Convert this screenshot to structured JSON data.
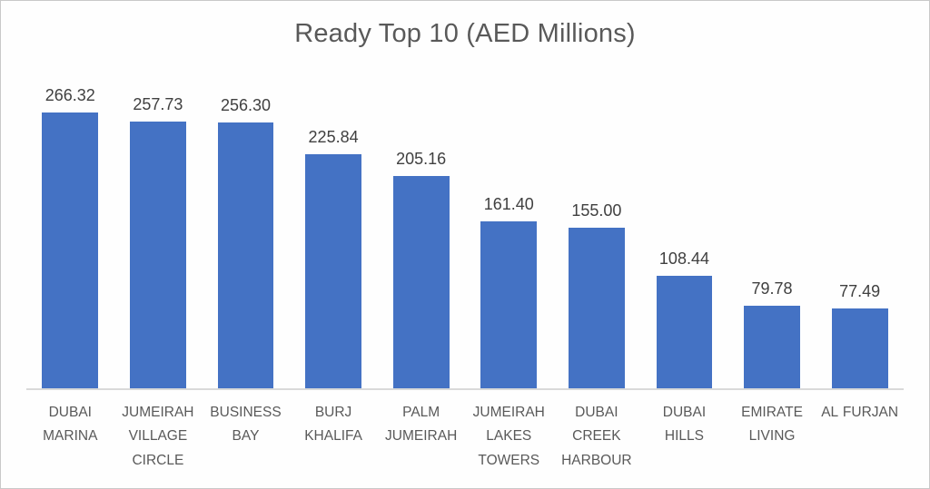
{
  "chart_data": {
    "type": "bar",
    "title": "Ready Top 10 (AED Millions)",
    "categories": [
      "DUBAI MARINA",
      "JUMEIRAH VILLAGE CIRCLE",
      "BUSINESS BAY",
      "BURJ KHALIFA",
      "PALM JUMEIRAH",
      "JUMEIRAH LAKES TOWERS",
      "DUBAI CREEK HARBOUR",
      "DUBAI HILLS",
      "EMIRATE LIVING",
      "AL FURJAN"
    ],
    "values": [
      266.32,
      257.73,
      256.3,
      225.84,
      205.16,
      161.4,
      155.0,
      108.44,
      79.78,
      77.49
    ],
    "value_labels": [
      "266.32",
      "257.73",
      "256.30",
      "225.84",
      "205.16",
      "161.40",
      "155.00",
      "108.44",
      "79.78",
      "77.49"
    ],
    "xlabel": "",
    "ylabel": "",
    "ylim": [
      0,
      307
    ],
    "grid": false,
    "legend": false,
    "data_labels_position": "above-bar",
    "colors": {
      "bar": "#4472C4",
      "title_text": "#595959",
      "value_label_text": "#404040",
      "category_label_text": "#595959",
      "axis_line": "#d9d9d9",
      "background": "#fefefe"
    }
  }
}
